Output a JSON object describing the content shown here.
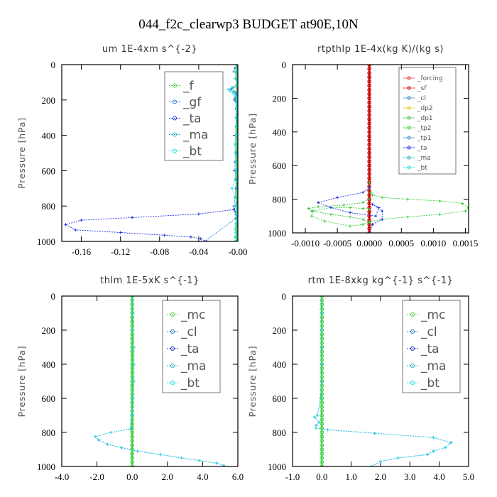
{
  "figure_title": "044_f2c_clearwp3  BUDGET at90E,10N",
  "colors": {
    "forcing": "#e03030",
    "sf": "#cc0000",
    "cl": "#2a7fd0",
    "dp2": "#e0c020",
    "dp1": "#40c040",
    "tp2": "#30d030",
    "tp1": "#4080e0",
    "ta": "#2030e0",
    "ma": "#2ab0c0",
    "bt": "#20e0e0",
    "f": "#40d040",
    "gf": "#2a7fd0",
    "mc": "#40d040"
  },
  "chart_data": [
    {
      "type": "line",
      "title": "um   1E-4xm s^{-2}",
      "ylabel": "Pressure [hPa]",
      "xlim": [
        -0.18,
        0.0
      ],
      "ylim": [
        1000,
        0
      ],
      "x_ticks": [
        -0.16,
        -0.12,
        -0.08,
        -0.04,
        -0.0
      ],
      "x_tick_labels": [
        "-0.16",
        "-0.12",
        "-0.08",
        "-0.04",
        "-0.00"
      ],
      "y_ticks": [
        0,
        200,
        400,
        600,
        800,
        1000
      ],
      "legend": [
        "_f",
        "_gf",
        "_ta",
        "_ma",
        "_bt"
      ],
      "legend_size": "large",
      "series": [
        {
          "name": "_f",
          "key": "f",
          "x": [
            -0.001,
            -0.001,
            -0.001,
            -0.001,
            -0.001,
            -0.001,
            -0.001,
            -0.001,
            -0.001,
            -0.001,
            -0.001,
            -0.001,
            -0.001,
            -0.001,
            -0.001,
            -0.001,
            -0.001,
            -0.001,
            -0.001,
            -0.001,
            -0.001,
            -0.001,
            -0.001,
            -0.001,
            -0.001
          ],
          "y": [
            0,
            40,
            80,
            120,
            160,
            200,
            250,
            300,
            350,
            400,
            450,
            500,
            550,
            600,
            650,
            700,
            750,
            800,
            840,
            870,
            900,
            925,
            950,
            975,
            1000
          ]
        },
        {
          "name": "_gf",
          "key": "gf",
          "x": [
            0.0,
            -0.003,
            -0.004,
            0.0,
            0.0,
            0.0,
            0.0,
            -0.005,
            -0.007,
            -0.004,
            -0.002,
            -0.001,
            -0.002,
            -0.003,
            -0.003,
            -0.002,
            -0.001,
            -0.001,
            -0.001,
            -0.001,
            -0.001,
            -0.002,
            -0.002,
            -0.003,
            -0.002,
            -0.003,
            -0.003,
            -0.002,
            -0.002,
            -0.003,
            -0.004,
            -0.003,
            -0.002,
            -0.002,
            -0.034
          ],
          "y": [
            0,
            20,
            40,
            60,
            80,
            100,
            120,
            130,
            140,
            150,
            160,
            170,
            180,
            190,
            200,
            210,
            220,
            230,
            250,
            280,
            300,
            350,
            400,
            450,
            500,
            550,
            600,
            650,
            700,
            750,
            800,
            830,
            850,
            870,
            1000
          ]
        },
        {
          "name": "_ta",
          "key": "ta",
          "x": [
            0.0,
            0.0,
            0.0,
            0.0,
            0.0,
            0.0,
            0.0,
            0.0,
            -0.0,
            -0.004,
            -0.04,
            -0.108,
            -0.16,
            -0.176,
            -0.166,
            -0.12,
            -0.075,
            -0.048,
            -0.038,
            -0.032
          ],
          "y": [
            0,
            100,
            200,
            300,
            400,
            500,
            600,
            700,
            780,
            820,
            845,
            865,
            880,
            905,
            935,
            950,
            965,
            975,
            985,
            1000
          ]
        },
        {
          "name": "_ma",
          "key": "ma",
          "x": [
            -0.0,
            -0.0,
            -0.0,
            -0.0,
            -0.0,
            -0.0,
            -0.0,
            -0.0,
            -0.0,
            -0.0,
            -0.0
          ],
          "y": [
            0,
            100,
            200,
            300,
            400,
            500,
            600,
            700,
            800,
            900,
            1000
          ]
        },
        {
          "name": "_bt",
          "key": "bt",
          "x": [
            0.0,
            -0.002,
            -0.003,
            -0.001,
            0.0,
            -0.006,
            -0.01,
            -0.008,
            -0.005,
            -0.003,
            -0.002,
            -0.001,
            -0.001,
            -0.001,
            -0.002,
            -0.002,
            -0.002,
            -0.003,
            -0.003,
            -0.002,
            -0.002,
            -0.003,
            -0.006,
            -0.003,
            -0.002,
            -0.001,
            -0.001,
            -0.002,
            -0.003,
            -0.002,
            -0.003,
            -0.003
          ],
          "y": [
            0,
            40,
            80,
            100,
            120,
            130,
            140,
            150,
            160,
            170,
            180,
            200,
            220,
            250,
            300,
            350,
            400,
            450,
            500,
            550,
            600,
            650,
            700,
            750,
            800,
            850,
            880,
            900,
            930,
            950,
            975,
            1000
          ]
        }
      ]
    },
    {
      "type": "line",
      "title": "rtpthlp   1E-4x(kg K)/(kg s)",
      "ylabel": "Pressure [hPa]",
      "xlim": [
        -0.0012,
        0.00155
      ],
      "ylim": [
        1000,
        0
      ],
      "x_ticks": [
        -0.001,
        -0.0005,
        0.0,
        0.0005,
        0.001,
        0.0015
      ],
      "x_tick_labels": [
        "-0.0010",
        "-0.0005",
        "0.0000",
        "0.0005",
        "0.0010",
        "0.0015"
      ],
      "y_ticks": [
        0,
        200,
        400,
        600,
        800,
        1000
      ],
      "legend": [
        "_forcing",
        "_sf",
        "_cl",
        "_dp2",
        "_dp1",
        "_tp2",
        "_tp1",
        "_ta",
        "_ma",
        "_bt"
      ],
      "legend_size": "small",
      "series": [
        {
          "name": "_forcing",
          "key": "forcing",
          "x": [
            0,
            0,
            0,
            0,
            0,
            0,
            0,
            0,
            0,
            0,
            0,
            0,
            0,
            0,
            0,
            0,
            0,
            0,
            0,
            0,
            0,
            0,
            0,
            0,
            0,
            0,
            0,
            0,
            0,
            0,
            0,
            0,
            0,
            0,
            0,
            0,
            0,
            0,
            0,
            0,
            0
          ],
          "y": [
            0,
            25,
            50,
            75,
            100,
            125,
            150,
            175,
            200,
            225,
            250,
            275,
            300,
            325,
            350,
            375,
            400,
            425,
            450,
            475,
            500,
            525,
            550,
            575,
            600,
            625,
            650,
            675,
            700,
            725,
            750,
            775,
            800,
            825,
            850,
            875,
            900,
            925,
            950,
            975,
            1000
          ]
        },
        {
          "name": "_sf",
          "key": "sf",
          "x": [
            0,
            0,
            0,
            0,
            0,
            0,
            0,
            0,
            0,
            0,
            0,
            0,
            0,
            0,
            0,
            0,
            0,
            0,
            0,
            0,
            0,
            0,
            0,
            0,
            0,
            0,
            0,
            0,
            0,
            0,
            0,
            0,
            0,
            0,
            0,
            0,
            0,
            0,
            0,
            0,
            0
          ],
          "y": [
            0,
            25,
            50,
            75,
            100,
            125,
            150,
            175,
            200,
            225,
            250,
            275,
            300,
            325,
            350,
            375,
            400,
            425,
            450,
            475,
            500,
            525,
            550,
            575,
            600,
            625,
            650,
            675,
            700,
            725,
            750,
            775,
            800,
            825,
            850,
            875,
            900,
            925,
            950,
            975,
            1000
          ]
        },
        {
          "name": "_tp2",
          "key": "tp2",
          "x": [
            0.0,
            2e-05,
            5e-05,
            0.0002,
            0.0006,
            0.0011,
            0.00145,
            0.00155,
            0.0015,
            0.0011,
            0.0006,
            0.0002,
            0.0,
            -0.0001,
            -0.0003,
            -0.0007,
            -0.0009,
            -0.00088,
            -0.0006,
            -0.0003,
            -0.0001,
            0.0
          ],
          "y": [
            700,
            760,
            775,
            790,
            800,
            810,
            825,
            850,
            870,
            890,
            905,
            920,
            935,
            950,
            960,
            930,
            900,
            870,
            850,
            850,
            855,
            860
          ]
        },
        {
          "name": "_dp1",
          "key": "dp1",
          "x": [
            0.0,
            -0.0001,
            -0.0004,
            -0.0008,
            -0.00095,
            -0.0009,
            -0.0006,
            -0.0003,
            -0.0001,
            0.0
          ],
          "y": [
            800,
            820,
            835,
            845,
            855,
            870,
            890,
            905,
            920,
            940
          ]
        },
        {
          "name": "_ta",
          "key": "ta",
          "x": [
            0.0,
            -0.0001,
            -0.0005,
            -0.0008,
            -0.0006,
            -0.0003,
            0.0001,
            0.00015,
            5e-05,
            0.0002,
            0.0002,
            5e-05,
            0.0
          ],
          "y": [
            730,
            760,
            790,
            820,
            850,
            880,
            900,
            850,
            830,
            870,
            920,
            950,
            1000
          ]
        }
      ]
    },
    {
      "type": "line",
      "title": "thlm   1E-5xK s^{-1}",
      "ylabel": "Pressure [hPa]",
      "xlim": [
        -4.0,
        6.0
      ],
      "ylim": [
        1000,
        0
      ],
      "x_ticks": [
        -4.0,
        -2.0,
        0.0,
        2.0,
        4.0,
        6.0
      ],
      "x_tick_labels": [
        "-4.0",
        "-2.0",
        "0.0",
        "2.0",
        "4.0",
        "6.0"
      ],
      "y_ticks": [
        0,
        200,
        400,
        600,
        800,
        1000
      ],
      "legend": [
        "_mc",
        "_cl",
        "_ta",
        "_ma",
        "_bt"
      ],
      "legend_size": "large",
      "series": [
        {
          "name": "_mc",
          "key": "mc",
          "x": [
            0,
            0,
            0,
            0,
            0,
            0,
            0,
            0,
            0,
            0,
            0,
            0,
            0,
            0,
            0,
            0,
            0,
            0,
            0,
            0,
            0,
            0,
            0,
            0,
            0,
            0,
            0,
            0,
            0,
            0,
            0,
            0,
            0,
            0,
            0,
            0,
            0,
            0,
            0,
            0,
            0
          ],
          "y": [
            0,
            25,
            50,
            75,
            100,
            125,
            150,
            175,
            200,
            225,
            250,
            275,
            300,
            325,
            350,
            375,
            400,
            425,
            450,
            475,
            500,
            525,
            550,
            575,
            600,
            625,
            650,
            675,
            700,
            725,
            750,
            775,
            800,
            825,
            850,
            875,
            900,
            925,
            950,
            975,
            1000
          ]
        },
        {
          "name": "_ta",
          "key": "ta",
          "x": [
            0.0,
            0.05,
            0.05,
            0.1,
            0.1,
            0.1,
            0.05,
            0.0,
            -0.1,
            -1.2,
            -2.1,
            -1.9,
            -1.4,
            -0.6,
            0.3,
            1.6,
            2.8,
            3.8,
            4.8,
            5.2
          ],
          "y": [
            0,
            100,
            200,
            300,
            400,
            500,
            600,
            700,
            780,
            800,
            825,
            845,
            870,
            890,
            910,
            930,
            950,
            965,
            980,
            995
          ]
        },
        {
          "name": "_bt",
          "key": "bt",
          "x": [
            0.0,
            0.05,
            0.05,
            0.1,
            0.1,
            0.1,
            0.05,
            0.0,
            -0.1,
            -1.2,
            -2.1,
            -1.9,
            -1.4,
            -0.6,
            0.3,
            1.6,
            2.8,
            3.8,
            4.8,
            5.2
          ],
          "y": [
            0,
            100,
            200,
            300,
            400,
            500,
            600,
            700,
            780,
            800,
            825,
            845,
            870,
            890,
            910,
            930,
            950,
            965,
            980,
            995
          ]
        }
      ]
    },
    {
      "type": "line",
      "title": "rtm   1E-8xkg kg^{-1} s^{-1}",
      "ylabel": "Pressure [hPa]",
      "xlim": [
        -1.0,
        5.0
      ],
      "ylim": [
        1000,
        0
      ],
      "x_ticks": [
        -1.0,
        0.0,
        1.0,
        2.0,
        3.0,
        4.0,
        5.0
      ],
      "x_tick_labels": [
        "-1.0",
        "0.0",
        "1.0",
        "2.0",
        "3.0",
        "4.0",
        "5.0"
      ],
      "y_ticks": [
        0,
        200,
        400,
        600,
        800,
        1000
      ],
      "legend": [
        "_mc",
        "_cl",
        "_ta",
        "_ma",
        "_bt"
      ],
      "legend_size": "large",
      "series": [
        {
          "name": "_mc",
          "key": "mc",
          "x": [
            0,
            0,
            0,
            0,
            0,
            0,
            0,
            0,
            0,
            0,
            0,
            0,
            0,
            0,
            0,
            0,
            0,
            0,
            0,
            0,
            0,
            0,
            0,
            0,
            0,
            0,
            0,
            0,
            0,
            0,
            0,
            0,
            0,
            0,
            0,
            0,
            0,
            0,
            0,
            0,
            0
          ],
          "y": [
            0,
            25,
            50,
            75,
            100,
            125,
            150,
            175,
            200,
            225,
            250,
            275,
            300,
            325,
            350,
            375,
            400,
            425,
            450,
            475,
            500,
            525,
            550,
            575,
            600,
            625,
            650,
            675,
            700,
            725,
            750,
            775,
            800,
            825,
            850,
            875,
            900,
            925,
            950,
            975,
            1000
          ]
        },
        {
          "name": "_ta",
          "key": "ta",
          "x": [
            0.0,
            0.0,
            0.0,
            0.0,
            0.0,
            0.0,
            -0.05,
            -0.15,
            -0.25,
            -0.1,
            -0.2,
            -0.2,
            0.2,
            1.8,
            3.8,
            4.4,
            4.2,
            3.8,
            3.6,
            2.6,
            2.0,
            1.7
          ],
          "y": [
            0,
            100,
            200,
            300,
            400,
            500,
            600,
            700,
            710,
            740,
            760,
            775,
            785,
            805,
            830,
            860,
            890,
            910,
            930,
            950,
            970,
            1000
          ]
        },
        {
          "name": "_bt",
          "key": "bt",
          "x": [
            0.0,
            0.0,
            0.0,
            0.0,
            0.0,
            0.0,
            -0.05,
            -0.15,
            -0.25,
            -0.1,
            -0.2,
            -0.2,
            0.2,
            1.8,
            3.8,
            4.4,
            4.2,
            3.8,
            3.6,
            2.6,
            2.0,
            1.7
          ],
          "y": [
            0,
            100,
            200,
            300,
            400,
            500,
            600,
            700,
            710,
            740,
            760,
            775,
            785,
            805,
            830,
            860,
            890,
            910,
            930,
            950,
            970,
            1000
          ]
        }
      ]
    }
  ]
}
